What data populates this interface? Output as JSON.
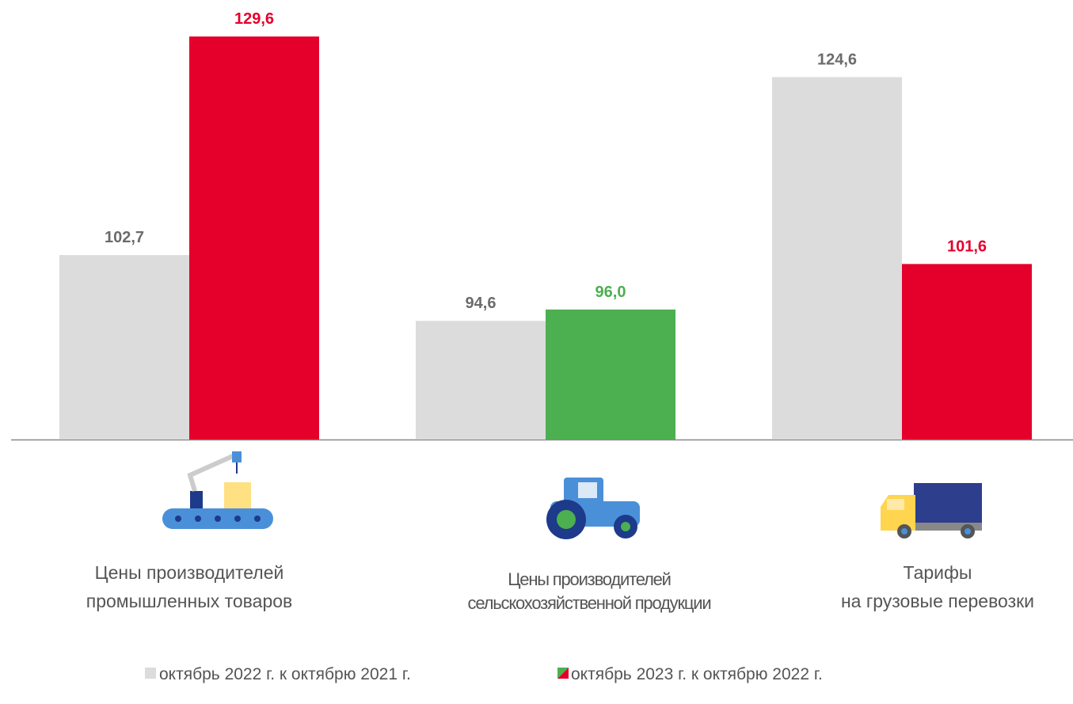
{
  "chart_data": {
    "type": "bar",
    "categories": [
      "Цены производителей\nпромышленных товаров",
      "Цены производителей\nсельскохозяйственной продукции",
      "Тарифы\nна грузовые перевозки"
    ],
    "series": [
      {
        "name": "октябрь 2022 г. к октябрю 2021 г.",
        "color": "#dcdcdc",
        "values": [
          102.7,
          94.6,
          124.6
        ],
        "value_labels": [
          "102,7",
          "94,6",
          "124,6"
        ]
      },
      {
        "name": "октябрь 2023 г. к октябрю 2022 г.",
        "colors": [
          "#e4002b",
          "#4caf50",
          "#e4002b"
        ],
        "values": [
          129.6,
          96.0,
          101.6
        ],
        "value_labels": [
          "129,6",
          "96,0",
          "101,6"
        ]
      }
    ],
    "ylim": [
      80,
      130
    ]
  }
}
